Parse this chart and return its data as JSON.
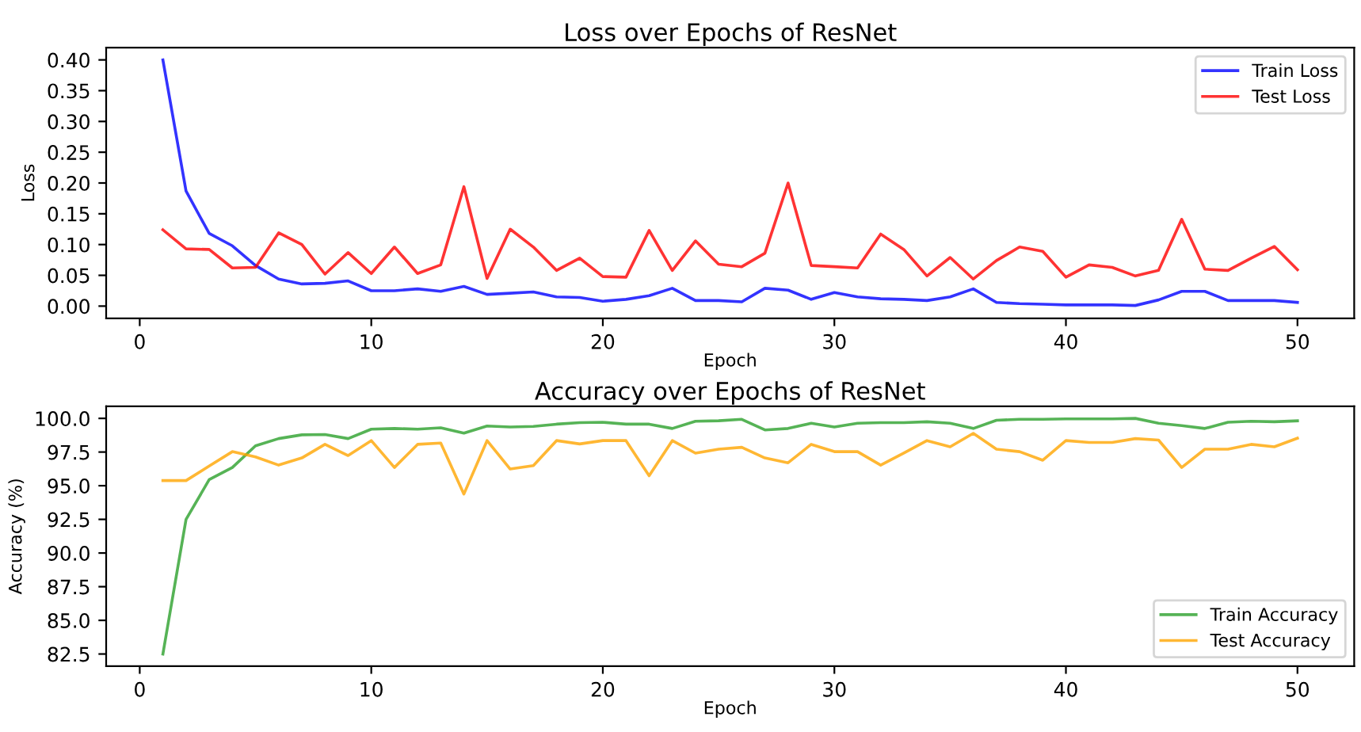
{
  "chart_data": [
    {
      "type": "line",
      "title": "Loss over Epochs of ResNet",
      "xlabel": "Epoch",
      "ylabel": "Loss",
      "legend": "top right",
      "grid": false,
      "x": [
        1,
        2,
        3,
        4,
        5,
        6,
        7,
        8,
        9,
        10,
        11,
        12,
        13,
        14,
        15,
        16,
        17,
        18,
        19,
        20,
        21,
        22,
        23,
        24,
        25,
        26,
        27,
        28,
        29,
        30,
        31,
        32,
        33,
        34,
        35,
        36,
        37,
        38,
        39,
        40,
        41,
        42,
        43,
        44,
        45,
        46,
        47,
        48,
        49,
        50
      ],
      "xlim": [
        -1.45,
        52.45
      ],
      "xticks": [
        0,
        10,
        20,
        30,
        40,
        50
      ],
      "ylim": [
        -0.02,
        0.42
      ],
      "yticks": [
        {
          "value": 0,
          "label": "0.00"
        },
        {
          "value": 0.05,
          "label": "0.05"
        },
        {
          "value": 0.1,
          "label": "0.10"
        },
        {
          "value": 0.15,
          "label": "0.15"
        },
        {
          "value": 0.2,
          "label": "0.20"
        },
        {
          "value": 0.25,
          "label": "0.25"
        },
        {
          "value": 0.3,
          "label": "0.30"
        },
        {
          "value": 0.35,
          "label": "0.35"
        },
        {
          "value": 0.4,
          "label": "0.40"
        }
      ],
      "series": [
        {
          "name": "Train Loss",
          "color": "#0000ff",
          "values": [
            0.4,
            0.187,
            0.118,
            0.098,
            0.066,
            0.044,
            0.036,
            0.037,
            0.041,
            0.025,
            0.025,
            0.028,
            0.024,
            0.032,
            0.019,
            0.021,
            0.023,
            0.015,
            0.014,
            0.008,
            0.011,
            0.017,
            0.029,
            0.009,
            0.009,
            0.007,
            0.029,
            0.026,
            0.011,
            0.022,
            0.015,
            0.012,
            0.011,
            0.009,
            0.015,
            0.028,
            0.006,
            0.004,
            0.003,
            0.002,
            0.002,
            0.002,
            0.001,
            0.01,
            0.024,
            0.024,
            0.009,
            0.009,
            0.009,
            0.006
          ]
        },
        {
          "name": "Test Loss",
          "color": "#ff0000",
          "values": [
            0.124,
            0.093,
            0.092,
            0.062,
            0.063,
            0.119,
            0.1,
            0.052,
            0.087,
            0.053,
            0.096,
            0.053,
            0.067,
            0.194,
            0.045,
            0.125,
            0.096,
            0.058,
            0.078,
            0.048,
            0.047,
            0.123,
            0.058,
            0.106,
            0.068,
            0.064,
            0.086,
            0.2,
            0.066,
            0.064,
            0.062,
            0.117,
            0.092,
            0.049,
            0.079,
            0.044,
            0.074,
            0.096,
            0.089,
            0.047,
            0.067,
            0.063,
            0.049,
            0.058,
            0.141,
            0.06,
            0.058,
            0.078,
            0.097,
            0.059
          ]
        }
      ]
    },
    {
      "type": "line",
      "title": "Accuracy over Epochs of ResNet",
      "xlabel": "Epoch",
      "ylabel": "Accuracy (%)",
      "legend": "bottom right",
      "grid": false,
      "x": [
        1,
        2,
        3,
        4,
        5,
        6,
        7,
        8,
        9,
        10,
        11,
        12,
        13,
        14,
        15,
        16,
        17,
        18,
        19,
        20,
        21,
        22,
        23,
        24,
        25,
        26,
        27,
        28,
        29,
        30,
        31,
        32,
        33,
        34,
        35,
        36,
        37,
        38,
        39,
        40,
        41,
        42,
        43,
        44,
        45,
        46,
        47,
        48,
        49,
        50
      ],
      "xlim": [
        -1.45,
        52.45
      ],
      "xticks": [
        0,
        10,
        20,
        30,
        40,
        50
      ],
      "ylim": [
        81.6,
        100.9
      ],
      "yticks": [
        {
          "value": 82.5,
          "label": "82.5"
        },
        {
          "value": 85,
          "label": "85.0"
        },
        {
          "value": 87.5,
          "label": "87.5"
        },
        {
          "value": 90,
          "label": "90.0"
        },
        {
          "value": 92.5,
          "label": "92.5"
        },
        {
          "value": 95,
          "label": "95.0"
        },
        {
          "value": 97.5,
          "label": "97.5"
        },
        {
          "value": 100,
          "label": "100.0"
        }
      ],
      "series": [
        {
          "name": "Train Accuracy",
          "color": "#2ca02c",
          "values": [
            82.5,
            92.5,
            95.45,
            96.35,
            97.96,
            98.5,
            98.78,
            98.8,
            98.5,
            99.2,
            99.25,
            99.2,
            99.3,
            98.9,
            99.43,
            99.36,
            99.4,
            99.57,
            99.68,
            99.71,
            99.57,
            99.57,
            99.25,
            99.79,
            99.82,
            99.93,
            99.14,
            99.25,
            99.64,
            99.36,
            99.64,
            99.68,
            99.68,
            99.75,
            99.64,
            99.25,
            99.86,
            99.93,
            99.93,
            99.96,
            99.96,
            99.96,
            100.0,
            99.64,
            99.46,
            99.25,
            99.71,
            99.79,
            99.75,
            99.82
          ]
        },
        {
          "name": "Test Accuracy",
          "color": "#ffa500",
          "values": [
            95.38,
            95.38,
            96.46,
            97.53,
            97.14,
            96.53,
            97.06,
            98.07,
            97.24,
            98.35,
            96.35,
            98.07,
            98.17,
            94.38,
            98.35,
            96.24,
            96.49,
            98.35,
            98.1,
            98.35,
            98.35,
            95.74,
            98.35,
            97.42,
            97.71,
            97.85,
            97.06,
            96.7,
            98.07,
            97.53,
            97.53,
            96.53,
            97.42,
            98.35,
            97.89,
            98.89,
            97.71,
            97.53,
            96.89,
            98.35,
            98.21,
            98.21,
            98.5,
            98.39,
            96.35,
            97.71,
            97.71,
            98.07,
            97.89,
            98.53
          ]
        }
      ]
    }
  ]
}
